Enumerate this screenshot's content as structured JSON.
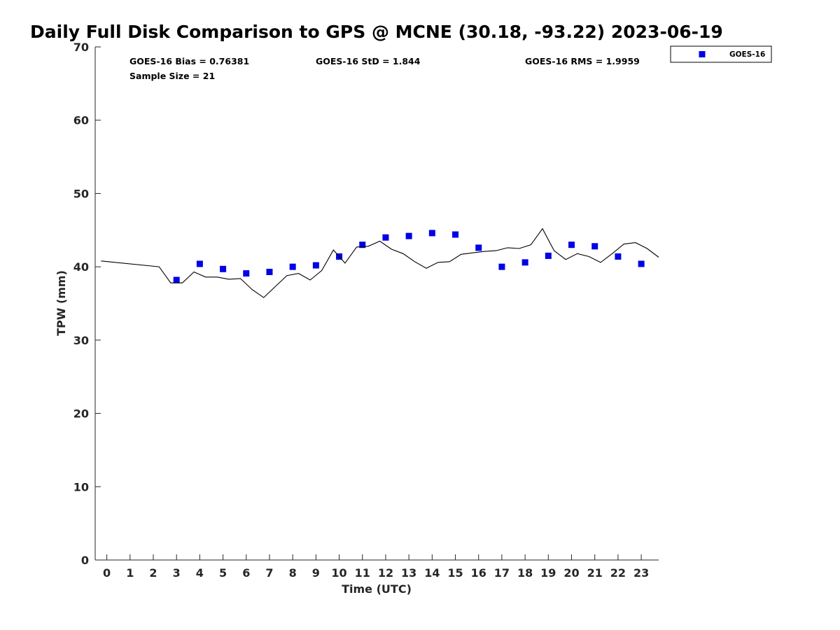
{
  "chart_data": {
    "type": "scatter",
    "title": "Daily Full Disk Comparison to GPS @ MCNE (30.18, -93.22) 2023-06-19",
    "xlabel": "Time (UTC)",
    "ylabel": "TPW (mm)",
    "xlim": [
      -0.5,
      23.75
    ],
    "ylim": [
      0,
      70
    ],
    "xticks": [
      0,
      1,
      2,
      3,
      4,
      5,
      6,
      7,
      8,
      9,
      10,
      11,
      12,
      13,
      14,
      15,
      16,
      17,
      18,
      19,
      20,
      21,
      22,
      23
    ],
    "yticks": [
      0,
      10,
      20,
      30,
      40,
      50,
      60,
      70
    ],
    "grid": false,
    "legend_position": "top-right",
    "stats": {
      "bias": "GOES-16 Bias = 0.76381",
      "std": "GOES-16 StD = 1.844",
      "rms": "GOES-16 RMS = 1.9959",
      "sample": "Sample Size = 21"
    },
    "series": [
      {
        "name": "GOES-16",
        "kind": "scatter",
        "marker": "square",
        "color": "#0000e6",
        "x": [
          3,
          4,
          5,
          6,
          7,
          8,
          9,
          10,
          11,
          12,
          13,
          14,
          15,
          16,
          17,
          18,
          19,
          20,
          21,
          22,
          23
        ],
        "y": [
          38.2,
          40.4,
          39.7,
          39.1,
          39.3,
          40.0,
          40.2,
          41.4,
          43.0,
          44.0,
          44.2,
          44.6,
          44.4,
          42.6,
          40.0,
          40.6,
          41.5,
          43.0,
          42.8,
          41.4,
          40.4
        ]
      },
      {
        "kind": "line",
        "color": "#000000",
        "x": [
          -0.25,
          2.25,
          2.75,
          3.25,
          3.75,
          4.25,
          4.75,
          5.25,
          5.75,
          6.25,
          6.75,
          7.25,
          7.75,
          8.25,
          8.75,
          9.25,
          9.75,
          10.25,
          10.75,
          11.25,
          11.75,
          12.25,
          12.75,
          13.25,
          13.75,
          14.25,
          14.75,
          15.25,
          15.75,
          16.25,
          16.75,
          17.25,
          17.75,
          18.25,
          18.75,
          19.25,
          19.75,
          20.25,
          20.75,
          21.25,
          21.75,
          22.25,
          22.75,
          23.25,
          23.75
        ],
        "y": [
          40.8,
          40.0,
          37.8,
          37.8,
          39.3,
          38.6,
          38.6,
          38.3,
          38.4,
          36.9,
          35.8,
          37.3,
          38.8,
          39.1,
          38.2,
          39.5,
          42.3,
          40.5,
          42.7,
          42.8,
          43.5,
          42.4,
          41.8,
          40.7,
          39.8,
          40.6,
          40.7,
          41.7,
          41.9,
          42.1,
          42.2,
          42.6,
          42.5,
          43.0,
          45.2,
          42.2,
          41.0,
          41.8,
          41.4,
          40.6,
          41.8,
          43.1,
          43.3,
          42.5,
          41.3
        ]
      }
    ]
  }
}
